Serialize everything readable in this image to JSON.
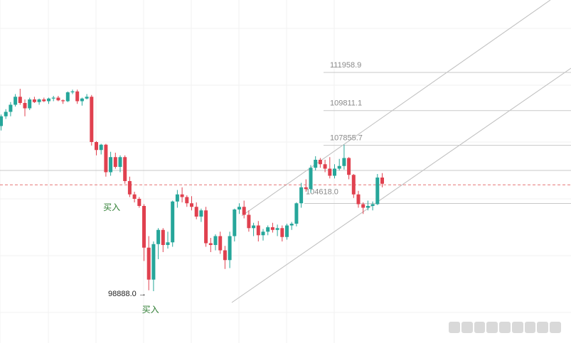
{
  "chart_data": {
    "type": "candlestick",
    "colors": {
      "up": "#26a69a",
      "down": "#e0414f",
      "guide": "#bdbdbd",
      "current": "#e57373",
      "note": "#2e7d32"
    },
    "price_levels": [
      {
        "value": 111958.9,
        "label": "111958.9"
      },
      {
        "value": 109811.1,
        "label": "109811.1"
      },
      {
        "value": 107855.7,
        "label": "107855.7"
      }
    ],
    "support_level": 104618.0,
    "support_label": "104618.0",
    "resistance_level": 105800,
    "current_price": 104990,
    "low_marker": {
      "value": 98888.0,
      "label": "98888.0",
      "arrow": "→"
    },
    "annotations": [
      {
        "text": "买入",
        "candle": 28
      },
      {
        "text": "买入",
        "candle": 33
      }
    ],
    "candles": [
      [
        108300,
        108950,
        108050,
        108850
      ],
      [
        108850,
        109250,
        108700,
        109100
      ],
      [
        109100,
        109650,
        108850,
        109500
      ],
      [
        109500,
        110100,
        109400,
        109950
      ],
      [
        109950,
        110400,
        109500,
        109600
      ],
      [
        109600,
        109800,
        108850,
        109300
      ],
      [
        109300,
        109900,
        109200,
        109800
      ],
      [
        109800,
        109950,
        109600,
        109650
      ],
      [
        109650,
        109850,
        109500,
        109800
      ],
      [
        109800,
        109900,
        109650,
        109700
      ],
      [
        109700,
        109900,
        109550,
        109850
      ],
      [
        109850,
        110000,
        109700,
        109900
      ],
      [
        109900,
        110000,
        109700,
        109750
      ],
      [
        109750,
        109800,
        109550,
        109700
      ],
      [
        109700,
        110250,
        109650,
        110200
      ],
      [
        110200,
        110350,
        110100,
        110250
      ],
      [
        110250,
        110350,
        109550,
        109700
      ],
      [
        109700,
        109900,
        109450,
        109850
      ],
      [
        109850,
        110100,
        109800,
        109950
      ],
      [
        109950,
        110050,
        107200,
        107400
      ],
      [
        107400,
        107450,
        106650,
        106950
      ],
      [
        106950,
        107300,
        106700,
        107250
      ],
      [
        107250,
        107300,
        105450,
        105700
      ],
      [
        105700,
        106850,
        105500,
        106550
      ],
      [
        106550,
        106800,
        105900,
        106000
      ],
      [
        106000,
        106650,
        105700,
        106550
      ],
      [
        106550,
        106650,
        105050,
        105200
      ],
      [
        105200,
        105450,
        104300,
        104450
      ],
      [
        104450,
        104600,
        104000,
        104200
      ],
      [
        104200,
        104300,
        103700,
        103800
      ],
      [
        103800,
        103900,
        100700,
        101450
      ],
      [
        101450,
        102100,
        99050,
        99650
      ],
      [
        99650,
        101800,
        99000,
        101650
      ],
      [
        101650,
        102550,
        100800,
        102450
      ],
      [
        102450,
        102550,
        101200,
        101600
      ],
      [
        101600,
        102350,
        101400,
        101750
      ],
      [
        101750,
        104100,
        101500,
        104050
      ],
      [
        104050,
        104700,
        103700,
        104450
      ],
      [
        104450,
        104850,
        104000,
        104300
      ],
      [
        104300,
        104400,
        103750,
        103950
      ],
      [
        103950,
        104350,
        103550,
        103750
      ],
      [
        103750,
        104000,
        103050,
        103200
      ],
      [
        103200,
        103650,
        102900,
        103550
      ],
      [
        103550,
        103750,
        101500,
        101700
      ],
      [
        101700,
        102000,
        101200,
        101600
      ],
      [
        101600,
        102200,
        101300,
        102100
      ],
      [
        102100,
        102350,
        101100,
        101300
      ],
      [
        101300,
        101550,
        100250,
        100750
      ],
      [
        100750,
        102350,
        100300,
        102100
      ],
      [
        102100,
        103650,
        101800,
        103600
      ],
      [
        103600,
        103950,
        103350,
        103750
      ],
      [
        103750,
        104100,
        103100,
        103300
      ],
      [
        103300,
        103550,
        102350,
        102550
      ],
      [
        102550,
        102850,
        102100,
        102700
      ],
      [
        102700,
        102950,
        101800,
        102150
      ],
      [
        102150,
        102500,
        101850,
        102350
      ],
      [
        102350,
        102700,
        102150,
        102600
      ],
      [
        102600,
        102850,
        102300,
        102450
      ],
      [
        102450,
        102750,
        102100,
        102550
      ],
      [
        102550,
        102700,
        101800,
        102050
      ],
      [
        102050,
        102800,
        101900,
        102700
      ],
      [
        102700,
        102900,
        102450,
        102800
      ],
      [
        102800,
        104000,
        102650,
        103950
      ],
      [
        103950,
        105100,
        103700,
        104850
      ],
      [
        104850,
        105300,
        104600,
        104750
      ],
      [
        104750,
        106100,
        104550,
        105950
      ],
      [
        105950,
        106600,
        105800,
        106400
      ],
      [
        106400,
        106500,
        105950,
        106150
      ],
      [
        106150,
        106400,
        105700,
        105900
      ],
      [
        105900,
        106550,
        105350,
        105500
      ],
      [
        105500,
        106150,
        105350,
        105900
      ],
      [
        105900,
        106450,
        105800,
        106050
      ],
      [
        106050,
        107250,
        105850,
        106500
      ],
      [
        106500,
        106550,
        105300,
        105550
      ],
      [
        105550,
        105600,
        104250,
        104450
      ],
      [
        104450,
        104650,
        103700,
        103900
      ],
      [
        103900,
        104000,
        103350,
        103700
      ],
      [
        103700,
        104100,
        103550,
        103800
      ],
      [
        103800,
        104050,
        103550,
        103900
      ],
      [
        103900,
        105600,
        103850,
        105400
      ],
      [
        105400,
        105650,
        104850,
        105050
      ]
    ]
  }
}
